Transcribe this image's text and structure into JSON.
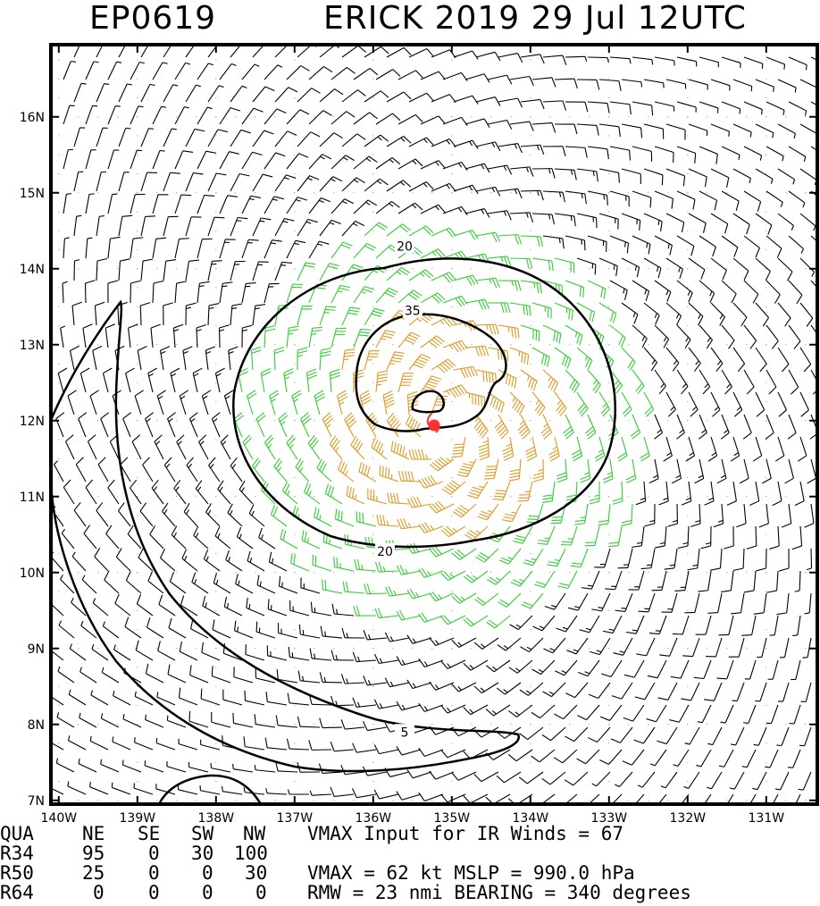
{
  "header": {
    "storm_id": "EP0619",
    "storm_info": "ERICK 2019 29 Jul 12UTC"
  },
  "map": {
    "lon_range": [
      -140.1,
      -130.35
    ],
    "lat_range": [
      6.95,
      16.95
    ],
    "lon_ticks": [
      "140W",
      "139W",
      "138W",
      "137W",
      "136W",
      "135W",
      "134W",
      "133W",
      "132W",
      "131W"
    ],
    "lat_ticks": [
      "7N",
      "8N",
      "9N",
      "10N",
      "11N",
      "12N",
      "13N",
      "14N",
      "15N",
      "16N"
    ],
    "contour_labels": [
      {
        "text": "20",
        "lon": -135.6,
        "lat": 14.3
      },
      {
        "text": "35",
        "lon": -135.5,
        "lat": 13.45
      },
      {
        "text": "20",
        "lon": -135.85,
        "lat": 10.28
      },
      {
        "text": "5",
        "lon": -135.6,
        "lat": 7.9
      }
    ],
    "storm_center": {
      "lon": -135.1,
      "lat": 11.95,
      "color": "#ff3030",
      "symbol": "hurricane-symbol"
    },
    "colors": {
      "weak": "#000000",
      "tropical_storm": "#33cc33",
      "strong": "#dd9922",
      "center": "#ff3030"
    }
  },
  "info_table": {
    "rows": [
      {
        "key": "QUA",
        "ne": "NE",
        "se": "SE",
        "sw": "SW",
        "nw": "NW",
        "extra": "VMAX Input for IR Winds =    67"
      },
      {
        "key": "R34",
        "ne": "95",
        "se": "0",
        "sw": "30",
        "nw": "100",
        "extra": ""
      },
      {
        "key": "R50",
        "ne": "25",
        "se": "0",
        "sw": "0",
        "nw": "30",
        "extra": "VMAX =    62 kt MSLP =  990.0 hPa"
      },
      {
        "key": "R64",
        "ne": "0",
        "se": "0",
        "sw": "0",
        "nw": "0",
        "extra": "RMW  =   23 nmi BEARING =  340 degrees"
      }
    ]
  }
}
